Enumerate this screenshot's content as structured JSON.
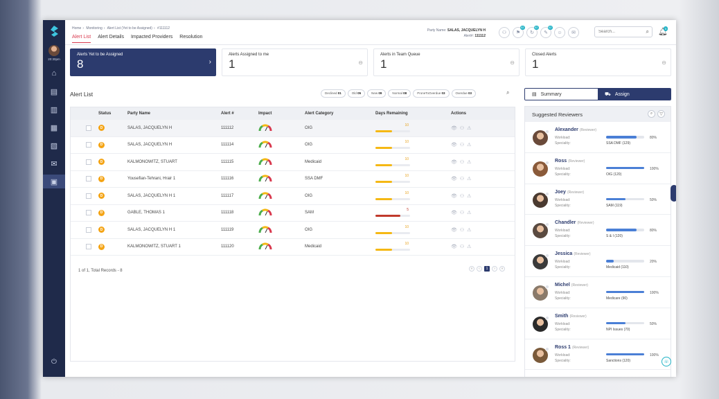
{
  "sidebar": {
    "time": "20:30pm",
    "nav": [
      {
        "icon": "home-icon",
        "glyph": "⌂"
      },
      {
        "icon": "clipboard-icon",
        "glyph": "▤"
      },
      {
        "icon": "building-icon",
        "glyph": "▥"
      },
      {
        "icon": "document-icon",
        "glyph": "▦"
      },
      {
        "icon": "report-icon",
        "glyph": "▧"
      },
      {
        "icon": "mail-icon",
        "glyph": "✉"
      },
      {
        "icon": "alerts-icon",
        "glyph": "▣"
      }
    ],
    "power_glyph": "⏻"
  },
  "header": {
    "breadcrumb": [
      "Home",
      "Monitoring",
      "Alert List (Yet to be Assigned)",
      "#111112"
    ],
    "tabs": [
      "Alert List",
      "Alert Details",
      "Impacted Providers",
      "Resolution"
    ],
    "party_name_label": "Party Name:",
    "party_name": "SALAS, JACQUELYN H",
    "alert_label": "Alert#:",
    "alert_no": "111112",
    "icon_badges": [
      "",
      "02",
      "02",
      "02",
      "",
      ""
    ],
    "search_placeholder": "Search...",
    "bell_badge": "5"
  },
  "cards": [
    {
      "title": "Alerts Yet to be Assigned",
      "count": "8",
      "active": true
    },
    {
      "title": "Alerts Assigned to me",
      "count": "1",
      "active": false
    },
    {
      "title": "Alerts in Team Queue",
      "count": "1",
      "active": false
    },
    {
      "title": "Closed Alerts",
      "count": "1",
      "active": false
    }
  ],
  "alert_list": {
    "title": "Alert List",
    "chips": [
      {
        "label": "Declined",
        "count": "01"
      },
      {
        "label": "Old",
        "count": "05"
      },
      {
        "label": "New",
        "count": "09"
      },
      {
        "label": "Normal",
        "count": "08"
      },
      {
        "label": "ProneToOverdue",
        "count": "03"
      },
      {
        "label": "Overdue",
        "count": "03"
      }
    ],
    "columns": [
      "Status",
      "Party Name",
      "Alert #",
      "Impact",
      "Alert Category",
      "Days Remaining",
      "Actions"
    ],
    "rows": [
      {
        "status": "D",
        "party": "SALAS, JACQUELYN H",
        "alert": "111112",
        "category": "OIG",
        "days": "10",
        "days_fraction": 0.48,
        "level": "normal"
      },
      {
        "status": "D",
        "party": "SALAS, JACQUELYN H",
        "alert": "111114",
        "category": "OIG",
        "days": "10",
        "days_fraction": 0.48,
        "level": "normal"
      },
      {
        "status": "D",
        "party": "KALMONOWITZ, STUART",
        "alert": "111115",
        "category": "Medicaid",
        "days": "10",
        "days_fraction": 0.48,
        "level": "normal"
      },
      {
        "status": "D",
        "party": "Yousefian-Tehrani, Hrair 1",
        "alert": "111116",
        "category": "SSA DMF",
        "days": "10",
        "days_fraction": 0.48,
        "level": "normal"
      },
      {
        "status": "D",
        "party": "SALAS, JACQUELYN H 1",
        "alert": "111117",
        "category": "OIG",
        "days": "10",
        "days_fraction": 0.48,
        "level": "normal"
      },
      {
        "status": "D",
        "party": "GABLE, THOMAS 1",
        "alert": "111118",
        "category": "SAM",
        "days": "5",
        "days_fraction": 0.72,
        "level": "critical"
      },
      {
        "status": "D",
        "party": "SALAS, JACQUELYN H 1",
        "alert": "111119",
        "category": "OIG",
        "days": "10",
        "days_fraction": 0.48,
        "level": "normal"
      },
      {
        "status": "D",
        "party": "KALMONOWITZ, STUART 1",
        "alert": "111120",
        "category": "Medicaid",
        "days": "10",
        "days_fraction": 0.48,
        "level": "normal"
      }
    ],
    "records_text": "1 of 1, Total Records - 8",
    "pager": [
      "«",
      "‹",
      "1",
      "›",
      "»"
    ]
  },
  "right_panel": {
    "tab_summary": "Summary",
    "tab_assign": "Assign",
    "title": "Suggested Reviewers",
    "workload_label": "Workload:",
    "speciality_label": "Speciality:",
    "reviewers": [
      {
        "name": "Alexander",
        "role": "(Reviewer)",
        "workload": 80,
        "pct": "80%",
        "speciality": "SSA DMF (129)",
        "color": "#6a4a3a"
      },
      {
        "name": "Ross",
        "role": "(Reviewer)",
        "workload": 100,
        "pct": "100%",
        "speciality": "OIG (120)",
        "color": "#8a5a3a"
      },
      {
        "name": "Joey",
        "role": "(Reviewer)",
        "workload": 50,
        "pct": "50%",
        "speciality": "SAM (119)",
        "color": "#4a3a30"
      },
      {
        "name": "Chandler",
        "role": "(Reviewer)",
        "workload": 80,
        "pct": "80%",
        "speciality": "S & I (120)",
        "color": "#5a4a40"
      },
      {
        "name": "Jessica",
        "role": "(Reviewer)",
        "workload": 20,
        "pct": "20%",
        "speciality": "Medicaid (110)",
        "color": "#3a3a3a"
      },
      {
        "name": "Michel",
        "role": "(Reviewer)",
        "workload": 100,
        "pct": "100%",
        "speciality": "Medicare (90)",
        "color": "#8a7a6a"
      },
      {
        "name": "Smith",
        "role": "(Reviewer)",
        "workload": 50,
        "pct": "50%",
        "speciality": "NPI Issues (70)",
        "color": "#2a2a2a"
      },
      {
        "name": "Ross 1",
        "role": "(Reviewer)",
        "workload": 100,
        "pct": "100%",
        "speciality": "Sanctions (120)",
        "color": "#7a5a3a"
      }
    ]
  },
  "colors": {
    "primary": "#2c3b6e",
    "accent": "#d9394e",
    "warning": "#f5b814",
    "danger": "#c0392b",
    "workload": "#4a7fd6",
    "badge": "#22b3c6"
  }
}
